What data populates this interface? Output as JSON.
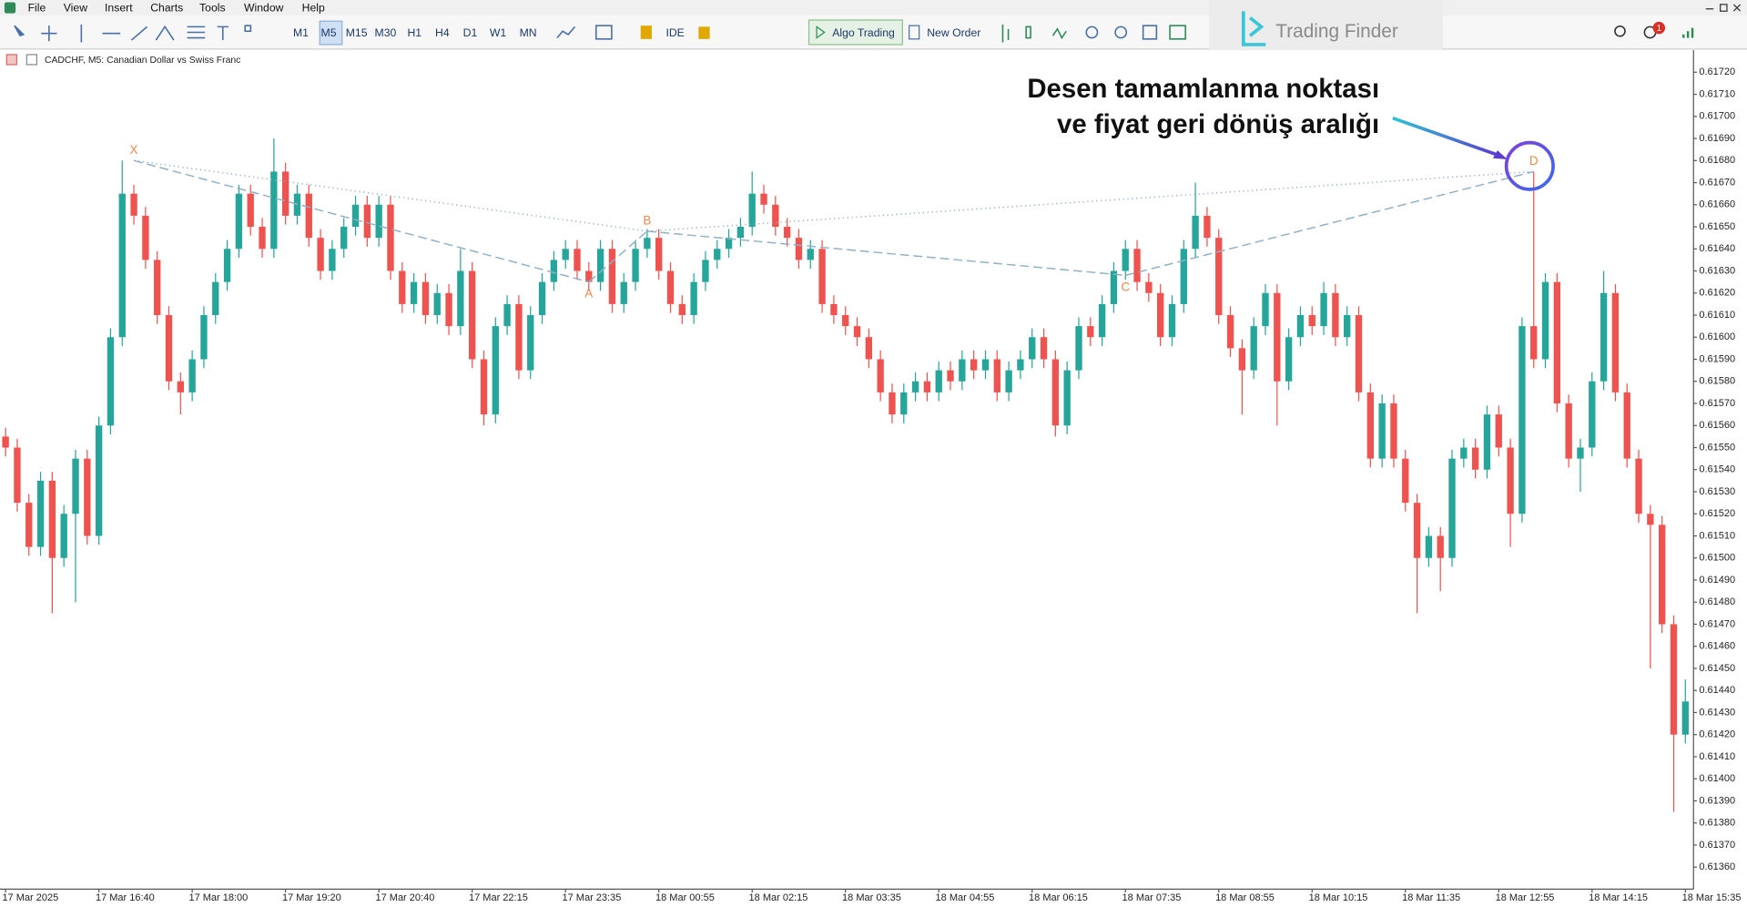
{
  "menu": [
    "File",
    "View",
    "Insert",
    "Charts",
    "Tools",
    "Window",
    "Help"
  ],
  "toolbar": {
    "timeframes": [
      "M1",
      "M5",
      "M15",
      "M30",
      "H1",
      "H4",
      "D1",
      "W1",
      "MN"
    ],
    "ide": "IDE",
    "algo_trading": "Algo Trading",
    "new_order": "New Order"
  },
  "logo": "Trading Finder",
  "notification_count": "1",
  "annotation": [
    "Desen tamamlanma noktası",
    "ve fiyat geri dönüş aralığı"
  ],
  "chart_data": {
    "type": "candlestick",
    "title": "CADCHF, M5:  Canadian Dollar vs Swiss Franc",
    "bull_color": "#26a69a",
    "bear_color": "#ef5350",
    "grid": false,
    "ylim": [
      0.6135,
      0.6173
    ],
    "yticks": [
      {
        "value": 0.6136,
        "label": "0.61360"
      },
      {
        "value": 0.6137,
        "label": "0.61370"
      },
      {
        "value": 0.6138,
        "label": "0.61380"
      },
      {
        "value": 0.6139,
        "label": "0.61390"
      },
      {
        "value": 0.614,
        "label": "0.61400"
      },
      {
        "value": 0.6141,
        "label": "0.61410"
      },
      {
        "value": 0.6142,
        "label": "0.61420"
      },
      {
        "value": 0.6143,
        "label": "0.61430"
      },
      {
        "value": 0.6144,
        "label": "0.61440"
      },
      {
        "value": 0.6145,
        "label": "0.61450"
      },
      {
        "value": 0.6146,
        "label": "0.61460"
      },
      {
        "value": 0.6147,
        "label": "0.61470"
      },
      {
        "value": 0.6148,
        "label": "0.61480"
      },
      {
        "value": 0.6149,
        "label": "0.61490"
      },
      {
        "value": 0.615,
        "label": "0.61500"
      },
      {
        "value": 0.6151,
        "label": "0.61510"
      },
      {
        "value": 0.6152,
        "label": "0.61520"
      },
      {
        "value": 0.6153,
        "label": "0.61530"
      },
      {
        "value": 0.6154,
        "label": "0.61540"
      },
      {
        "value": 0.6155,
        "label": "0.61550"
      },
      {
        "value": 0.6156,
        "label": "0.61560"
      },
      {
        "value": 0.6157,
        "label": "0.61570"
      },
      {
        "value": 0.6158,
        "label": "0.61580"
      },
      {
        "value": 0.6159,
        "label": "0.61590"
      },
      {
        "value": 0.616,
        "label": "0.61600"
      },
      {
        "value": 0.6161,
        "label": "0.61610"
      },
      {
        "value": 0.6162,
        "label": "0.61620"
      },
      {
        "value": 0.6163,
        "label": "0.61630"
      },
      {
        "value": 0.6164,
        "label": "0.61640"
      },
      {
        "value": 0.6165,
        "label": "0.61650"
      },
      {
        "value": 0.6166,
        "label": "0.61660"
      },
      {
        "value": 0.6167,
        "label": "0.61670"
      },
      {
        "value": 0.6168,
        "label": "0.61680"
      },
      {
        "value": 0.6169,
        "label": "0.61690"
      },
      {
        "value": 0.617,
        "label": "0.61700"
      },
      {
        "value": 0.6171,
        "label": "0.61710"
      },
      {
        "value": 0.6172,
        "label": "0.61720"
      }
    ],
    "xlim": [
      -0.5,
      145
    ],
    "xticks": [
      {
        "value": 0,
        "label": "17 Mar 2025"
      },
      {
        "value": 8,
        "label": "17 Mar 16:40"
      },
      {
        "value": 16,
        "label": "17 Mar 18:00"
      },
      {
        "value": 24,
        "label": "17 Mar 19:20"
      },
      {
        "value": 32,
        "label": "17 Mar 20:40"
      },
      {
        "value": 40,
        "label": "17 Mar 22:15"
      },
      {
        "value": 48,
        "label": "17 Mar 23:35"
      },
      {
        "value": 56,
        "label": "18 Mar 00:55"
      },
      {
        "value": 64,
        "label": "18 Mar 02:15"
      },
      {
        "value": 72,
        "label": "18 Mar 03:35"
      },
      {
        "value": 80,
        "label": "18 Mar 04:55"
      },
      {
        "value": 88,
        "label": "18 Mar 06:15"
      },
      {
        "value": 96,
        "label": "18 Mar 07:35"
      },
      {
        "value": 104,
        "label": "18 Mar 08:55"
      },
      {
        "value": 112,
        "label": "18 Mar 10:15"
      },
      {
        "value": 120,
        "label": "18 Mar 11:35"
      },
      {
        "value": 128,
        "label": "18 Mar 12:55"
      },
      {
        "value": 136,
        "label": "18 Mar 14:15"
      },
      {
        "value": 144,
        "label": "18 Mar 15:35"
      }
    ],
    "candles": [
      [
        0.61555,
        0.61559,
        0.61546,
        0.6155
      ],
      [
        0.6155,
        0.61554,
        0.61521,
        0.61525
      ],
      [
        0.61525,
        0.61529,
        0.61501,
        0.61505
      ],
      [
        0.61505,
        0.61539,
        0.61501,
        0.61535
      ],
      [
        0.61535,
        0.61539,
        0.61475,
        0.615
      ],
      [
        0.615,
        0.61524,
        0.61496,
        0.6152
      ],
      [
        0.6152,
        0.61549,
        0.6148,
        0.61545
      ],
      [
        0.61545,
        0.61549,
        0.61506,
        0.6151
      ],
      [
        0.6151,
        0.61564,
        0.61506,
        0.6156
      ],
      [
        0.6156,
        0.61604,
        0.61556,
        0.616
      ],
      [
        0.616,
        0.6168,
        0.61596,
        0.61665
      ],
      [
        0.61665,
        0.61669,
        0.61651,
        0.61655
      ],
      [
        0.61655,
        0.61659,
        0.61631,
        0.61635
      ],
      [
        0.61635,
        0.61639,
        0.61606,
        0.6161
      ],
      [
        0.6161,
        0.61614,
        0.61576,
        0.6158
      ],
      [
        0.6158,
        0.61584,
        0.61565,
        0.61575
      ],
      [
        0.61575,
        0.61594,
        0.61571,
        0.6159
      ],
      [
        0.6159,
        0.61614,
        0.61586,
        0.6161
      ],
      [
        0.6161,
        0.61629,
        0.61606,
        0.61625
      ],
      [
        0.61625,
        0.61644,
        0.61621,
        0.6164
      ],
      [
        0.6164,
        0.61669,
        0.61636,
        0.61665
      ],
      [
        0.61665,
        0.61669,
        0.61646,
        0.6165
      ],
      [
        0.6165,
        0.61654,
        0.61636,
        0.6164
      ],
      [
        0.6164,
        0.6169,
        0.61636,
        0.61675
      ],
      [
        0.61675,
        0.61679,
        0.61651,
        0.61655
      ],
      [
        0.61655,
        0.61669,
        0.61651,
        0.61665
      ],
      [
        0.61665,
        0.61669,
        0.61641,
        0.61645
      ],
      [
        0.61645,
        0.61649,
        0.61626,
        0.6163
      ],
      [
        0.6163,
        0.61644,
        0.61626,
        0.6164
      ],
      [
        0.6164,
        0.61654,
        0.61636,
        0.6165
      ],
      [
        0.6165,
        0.61664,
        0.61646,
        0.6166
      ],
      [
        0.6166,
        0.61664,
        0.61641,
        0.61645
      ],
      [
        0.61645,
        0.61664,
        0.61641,
        0.6166
      ],
      [
        0.6166,
        0.61664,
        0.61626,
        0.6163
      ],
      [
        0.6163,
        0.61634,
        0.61611,
        0.61615
      ],
      [
        0.61615,
        0.61629,
        0.61611,
        0.61625
      ],
      [
        0.61625,
        0.61629,
        0.61606,
        0.6161
      ],
      [
        0.6161,
        0.61624,
        0.61606,
        0.6162
      ],
      [
        0.6162,
        0.61624,
        0.61601,
        0.61605
      ],
      [
        0.61605,
        0.6164,
        0.61601,
        0.6163
      ],
      [
        0.6163,
        0.61634,
        0.61586,
        0.6159
      ],
      [
        0.6159,
        0.61594,
        0.6156,
        0.61565
      ],
      [
        0.61565,
        0.61609,
        0.61561,
        0.61605
      ],
      [
        0.61605,
        0.61619,
        0.61601,
        0.61615
      ],
      [
        0.61615,
        0.61619,
        0.61581,
        0.61585
      ],
      [
        0.61585,
        0.61614,
        0.61581,
        0.6161
      ],
      [
        0.6161,
        0.61629,
        0.61606,
        0.61625
      ],
      [
        0.61625,
        0.61639,
        0.61621,
        0.61635
      ],
      [
        0.61635,
        0.61644,
        0.61631,
        0.6164
      ],
      [
        0.6164,
        0.61644,
        0.61626,
        0.6163
      ],
      [
        0.6163,
        0.61634,
        0.61621,
        0.61625
      ],
      [
        0.61625,
        0.61644,
        0.61621,
        0.6164
      ],
      [
        0.6164,
        0.61644,
        0.61611,
        0.61615
      ],
      [
        0.61615,
        0.61629,
        0.61611,
        0.61625
      ],
      [
        0.61625,
        0.61644,
        0.61621,
        0.6164
      ],
      [
        0.6164,
        0.61649,
        0.61636,
        0.61645
      ],
      [
        0.61645,
        0.61649,
        0.61626,
        0.6163
      ],
      [
        0.6163,
        0.61634,
        0.61611,
        0.61615
      ],
      [
        0.61615,
        0.61619,
        0.61606,
        0.6161
      ],
      [
        0.6161,
        0.61629,
        0.61606,
        0.61625
      ],
      [
        0.61625,
        0.61639,
        0.61621,
        0.61635
      ],
      [
        0.61635,
        0.61644,
        0.61631,
        0.6164
      ],
      [
        0.6164,
        0.61649,
        0.61636,
        0.61645
      ],
      [
        0.61645,
        0.61654,
        0.61641,
        0.6165
      ],
      [
        0.6165,
        0.61675,
        0.61646,
        0.61665
      ],
      [
        0.61665,
        0.61669,
        0.61656,
        0.6166
      ],
      [
        0.6166,
        0.61664,
        0.61646,
        0.6165
      ],
      [
        0.6165,
        0.61654,
        0.61641,
        0.61645
      ],
      [
        0.61645,
        0.61649,
        0.61631,
        0.61635
      ],
      [
        0.61635,
        0.61644,
        0.61631,
        0.6164
      ],
      [
        0.6164,
        0.61644,
        0.61611,
        0.61615
      ],
      [
        0.61615,
        0.61619,
        0.61606,
        0.6161
      ],
      [
        0.6161,
        0.61614,
        0.61601,
        0.61605
      ],
      [
        0.61605,
        0.61609,
        0.61596,
        0.616
      ],
      [
        0.616,
        0.61604,
        0.61586,
        0.6159
      ],
      [
        0.6159,
        0.61594,
        0.61571,
        0.61575
      ],
      [
        0.61575,
        0.61579,
        0.61561,
        0.61565
      ],
      [
        0.61565,
        0.61579,
        0.61561,
        0.61575
      ],
      [
        0.61575,
        0.61584,
        0.61571,
        0.6158
      ],
      [
        0.6158,
        0.61584,
        0.61571,
        0.61575
      ],
      [
        0.61575,
        0.61589,
        0.61571,
        0.61585
      ],
      [
        0.61585,
        0.61589,
        0.61576,
        0.6158
      ],
      [
        0.6158,
        0.61594,
        0.61576,
        0.6159
      ],
      [
        0.6159,
        0.61594,
        0.61581,
        0.61585
      ],
      [
        0.61585,
        0.61594,
        0.61581,
        0.6159
      ],
      [
        0.6159,
        0.61594,
        0.61571,
        0.61575
      ],
      [
        0.61575,
        0.61589,
        0.61571,
        0.61585
      ],
      [
        0.61585,
        0.61594,
        0.61581,
        0.6159
      ],
      [
        0.6159,
        0.61604,
        0.61586,
        0.616
      ],
      [
        0.616,
        0.61604,
        0.61586,
        0.6159
      ],
      [
        0.6159,
        0.61594,
        0.61555,
        0.6156
      ],
      [
        0.6156,
        0.61589,
        0.61556,
        0.61585
      ],
      [
        0.61585,
        0.61609,
        0.61581,
        0.61605
      ],
      [
        0.61605,
        0.61609,
        0.61596,
        0.616
      ],
      [
        0.616,
        0.61619,
        0.61596,
        0.61615
      ],
      [
        0.61615,
        0.61634,
        0.61611,
        0.6163
      ],
      [
        0.6163,
        0.61644,
        0.61626,
        0.6164
      ],
      [
        0.6164,
        0.61644,
        0.61621,
        0.61625
      ],
      [
        0.61625,
        0.61629,
        0.61616,
        0.6162
      ],
      [
        0.6162,
        0.61624,
        0.61596,
        0.616
      ],
      [
        0.616,
        0.61619,
        0.61596,
        0.61615
      ],
      [
        0.61615,
        0.61644,
        0.61611,
        0.6164
      ],
      [
        0.6164,
        0.6167,
        0.61636,
        0.61655
      ],
      [
        0.61655,
        0.61659,
        0.61641,
        0.61645
      ],
      [
        0.61645,
        0.61649,
        0.61606,
        0.6161
      ],
      [
        0.6161,
        0.61614,
        0.61591,
        0.61595
      ],
      [
        0.61595,
        0.61599,
        0.61565,
        0.61585
      ],
      [
        0.61585,
        0.61609,
        0.61581,
        0.61605
      ],
      [
        0.61605,
        0.61624,
        0.61601,
        0.6162
      ],
      [
        0.6162,
        0.61624,
        0.6156,
        0.6158
      ],
      [
        0.6158,
        0.61604,
        0.61576,
        0.616
      ],
      [
        0.616,
        0.61614,
        0.61596,
        0.6161
      ],
      [
        0.6161,
        0.61614,
        0.61601,
        0.61605
      ],
      [
        0.61605,
        0.61625,
        0.61601,
        0.6162
      ],
      [
        0.6162,
        0.61624,
        0.61596,
        0.616
      ],
      [
        0.616,
        0.61614,
        0.61596,
        0.6161
      ],
      [
        0.6161,
        0.61614,
        0.61571,
        0.61575
      ],
      [
        0.61575,
        0.61579,
        0.61541,
        0.61545
      ],
      [
        0.61545,
        0.61574,
        0.61541,
        0.6157
      ],
      [
        0.6157,
        0.61574,
        0.61541,
        0.61545
      ],
      [
        0.61545,
        0.61549,
        0.61521,
        0.61525
      ],
      [
        0.61525,
        0.61529,
        0.61475,
        0.615
      ],
      [
        0.615,
        0.61514,
        0.61496,
        0.6151
      ],
      [
        0.6151,
        0.61514,
        0.61485,
        0.615
      ],
      [
        0.615,
        0.61549,
        0.61496,
        0.61545
      ],
      [
        0.61545,
        0.61554,
        0.61541,
        0.6155
      ],
      [
        0.6155,
        0.61554,
        0.61536,
        0.6154
      ],
      [
        0.6154,
        0.61569,
        0.61536,
        0.61565
      ],
      [
        0.61565,
        0.61569,
        0.61546,
        0.6155
      ],
      [
        0.6155,
        0.61554,
        0.61505,
        0.6152
      ],
      [
        0.6152,
        0.61609,
        0.61516,
        0.61605
      ],
      [
        0.61605,
        0.61675,
        0.61586,
        0.6159
      ],
      [
        0.6159,
        0.61629,
        0.61586,
        0.61625
      ],
      [
        0.61625,
        0.61629,
        0.61566,
        0.6157
      ],
      [
        0.6157,
        0.61574,
        0.61541,
        0.61545
      ],
      [
        0.61545,
        0.61554,
        0.6153,
        0.6155
      ],
      [
        0.6155,
        0.61584,
        0.61546,
        0.6158
      ],
      [
        0.6158,
        0.6163,
        0.61576,
        0.6162
      ],
      [
        0.6162,
        0.61624,
        0.61571,
        0.61575
      ],
      [
        0.61575,
        0.61579,
        0.61541,
        0.61545
      ],
      [
        0.61545,
        0.61549,
        0.61516,
        0.6152
      ],
      [
        0.6152,
        0.61524,
        0.6145,
        0.61515
      ],
      [
        0.61515,
        0.61519,
        0.61466,
        0.6147
      ],
      [
        0.6147,
        0.61474,
        0.61385,
        0.6142
      ],
      [
        0.6142,
        0.61445,
        0.61416,
        0.61435
      ]
    ],
    "pattern_color": "#f0864a",
    "pattern_line_color": "#8fb0c6",
    "pattern": [
      {
        "label": "X",
        "index": 11,
        "price": 0.6168
      },
      {
        "label": "A",
        "index": 50,
        "price": 0.61625
      },
      {
        "label": "B",
        "index": 55,
        "price": 0.61648
      },
      {
        "label": "C",
        "index": 96,
        "price": 0.61628
      },
      {
        "label": "D",
        "index": 131,
        "price": 0.61675
      }
    ]
  }
}
